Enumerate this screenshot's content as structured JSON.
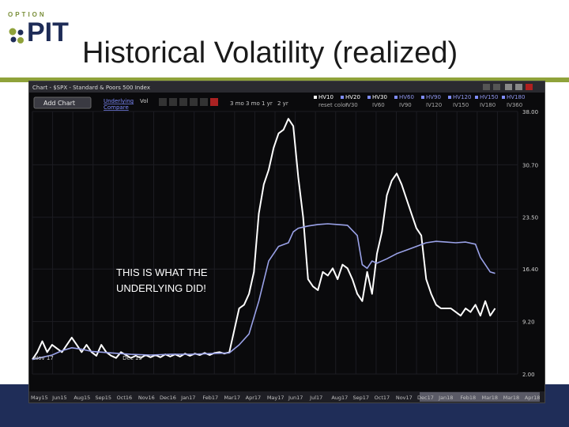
{
  "slide": {
    "title": "Historical Volatility (realized)",
    "logo_top": "OPTION",
    "logo_main": "PIT",
    "annotation_line1": "THIS IS WHAT THE",
    "annotation_line2": "UNDERLYING DID!"
  },
  "toolbar": {
    "window_title": "Chart - $SPX - Standard & Poors 500 Index",
    "add_chart_label": "Add Chart",
    "underlying_label": "Underlying",
    "vol_label": "Vol",
    "compare_label": "Compare",
    "periods": [
      "3 mo",
      "3 mo",
      "1 yr",
      "2 yr"
    ],
    "hv_options_row1": [
      "HV10",
      "HV20",
      "HV30",
      "HV60",
      "HV90",
      "HV120",
      "HV150",
      "HV180"
    ],
    "hv_options_row2": [
      "reset color",
      "IV30",
      "IV60",
      "IV90",
      "IV120",
      "IV150",
      "IV180",
      "IV360"
    ]
  },
  "colors": {
    "series_white": "#ffffff",
    "series_blue": "#9aa2e8",
    "axis_text": "#d0d0d0",
    "grid": "#1c1c22"
  },
  "chart_data": {
    "type": "line",
    "xlabel": "",
    "ylabel": "",
    "ylim": [
      2.0,
      38.0
    ],
    "y_ticks": [
      38.0,
      30.7,
      23.5,
      16.4,
      9.2,
      2.0
    ],
    "y_tick_labels": [
      "38.00",
      "30.70",
      "23.50",
      "16.40",
      "9.20",
      "2.00"
    ],
    "x_range": [
      0,
      96
    ],
    "upper_date_labels": [
      {
        "x": 0,
        "label": "Nov 17"
      },
      {
        "x": 18,
        "label": "Dec 15"
      }
    ],
    "lower_date_labels": [
      "May15",
      "Jun15",
      "Aug15",
      "Sep15",
      "Oct16",
      "Nov16",
      "Dec16",
      "Jan17",
      "Feb17",
      "Mar17",
      "Apr17",
      "May17",
      "Jun17",
      "Jul17",
      "Aug17",
      "Sep17",
      "Oct17",
      "Nov17",
      "Dec17",
      "Jan18",
      "Feb18",
      "Mar18",
      "Mar18",
      "Apr18"
    ],
    "series": [
      {
        "color": "#ffffff",
        "points": [
          [
            0,
            4.0
          ],
          [
            1,
            5.0
          ],
          [
            2,
            6.5
          ],
          [
            3,
            5.0
          ],
          [
            4,
            6.0
          ],
          [
            5,
            5.5
          ],
          [
            6,
            5.0
          ],
          [
            7,
            6.0
          ],
          [
            8,
            7.0
          ],
          [
            9,
            6.0
          ],
          [
            10,
            5.0
          ],
          [
            11,
            6.0
          ],
          [
            12,
            5.0
          ],
          [
            13,
            4.5
          ],
          [
            14,
            6.0
          ],
          [
            15,
            5.0
          ],
          [
            16,
            4.5
          ],
          [
            17,
            4.2
          ],
          [
            18,
            5.0
          ],
          [
            19,
            4.6
          ],
          [
            20,
            4.2
          ],
          [
            21,
            4.5
          ],
          [
            22,
            4.2
          ],
          [
            23,
            4.6
          ],
          [
            24,
            4.3
          ],
          [
            25,
            4.6
          ],
          [
            26,
            4.3
          ],
          [
            27,
            4.7
          ],
          [
            28,
            4.4
          ],
          [
            29,
            4.7
          ],
          [
            30,
            4.4
          ],
          [
            31,
            4.8
          ],
          [
            32,
            4.5
          ],
          [
            33,
            4.8
          ],
          [
            34,
            4.6
          ],
          [
            35,
            4.9
          ],
          [
            36,
            4.6
          ],
          [
            37,
            4.9
          ],
          [
            38,
            5.0
          ],
          [
            39,
            4.8
          ],
          [
            40,
            5.0
          ],
          [
            41,
            8.0
          ],
          [
            42,
            11.0
          ],
          [
            43,
            11.5
          ],
          [
            44,
            13.0
          ],
          [
            45,
            16.0
          ],
          [
            46,
            24.0
          ],
          [
            47,
            28.0
          ],
          [
            48,
            30.0
          ],
          [
            49,
            33.0
          ],
          [
            50,
            35.0
          ],
          [
            51,
            35.5
          ],
          [
            52,
            37.0
          ],
          [
            53,
            36.0
          ],
          [
            54,
            29.0
          ],
          [
            55,
            23.5
          ],
          [
            56,
            15.0
          ],
          [
            57,
            14.0
          ],
          [
            58,
            13.5
          ],
          [
            59,
            16.0
          ],
          [
            60,
            15.5
          ],
          [
            61,
            16.5
          ],
          [
            62,
            15.0
          ],
          [
            63,
            17.0
          ],
          [
            64,
            16.5
          ],
          [
            65,
            15.0
          ],
          [
            66,
            13.0
          ],
          [
            67,
            12.0
          ],
          [
            68,
            16.0
          ],
          [
            69,
            13.0
          ],
          [
            70,
            18.5
          ],
          [
            71,
            21.5
          ],
          [
            72,
            26.5
          ],
          [
            73,
            28.5
          ],
          [
            74,
            29.5
          ],
          [
            75,
            28.0
          ],
          [
            76,
            26.0
          ],
          [
            77,
            24.0
          ],
          [
            78,
            22.0
          ],
          [
            79,
            21.0
          ],
          [
            80,
            15.0
          ],
          [
            81,
            13.0
          ],
          [
            82,
            11.5
          ],
          [
            83,
            11.0
          ],
          [
            84,
            11.0
          ],
          [
            85,
            11.0
          ],
          [
            86,
            10.5
          ],
          [
            87,
            10.0
          ],
          [
            88,
            11.0
          ],
          [
            89,
            10.5
          ],
          [
            90,
            11.5
          ],
          [
            91,
            10.0
          ],
          [
            92,
            12.0
          ],
          [
            93,
            10.0
          ],
          [
            94,
            11.0
          ]
        ]
      },
      {
        "color": "#9aa2e8",
        "points": [
          [
            0,
            4.0
          ],
          [
            2,
            4.3
          ],
          [
            4,
            4.6
          ],
          [
            6,
            5.2
          ],
          [
            8,
            5.6
          ],
          [
            10,
            5.4
          ],
          [
            12,
            5.1
          ],
          [
            14,
            5.0
          ],
          [
            16,
            4.9
          ],
          [
            18,
            4.8
          ],
          [
            20,
            4.7
          ],
          [
            24,
            4.6
          ],
          [
            28,
            4.7
          ],
          [
            32,
            4.7
          ],
          [
            36,
            4.8
          ],
          [
            40,
            4.9
          ],
          [
            42,
            6.0
          ],
          [
            44,
            7.5
          ],
          [
            46,
            12.0
          ],
          [
            48,
            17.5
          ],
          [
            50,
            19.5
          ],
          [
            52,
            20.0
          ],
          [
            53,
            21.5
          ],
          [
            54,
            22.0
          ],
          [
            56,
            22.3
          ],
          [
            58,
            22.5
          ],
          [
            60,
            22.6
          ],
          [
            62,
            22.5
          ],
          [
            64,
            22.4
          ],
          [
            66,
            21.0
          ],
          [
            67,
            17.0
          ],
          [
            68,
            16.5
          ],
          [
            69,
            17.5
          ],
          [
            70,
            17.2
          ],
          [
            72,
            17.8
          ],
          [
            74,
            18.5
          ],
          [
            76,
            19.0
          ],
          [
            78,
            19.5
          ],
          [
            80,
            20.0
          ],
          [
            82,
            20.2
          ],
          [
            84,
            20.1
          ],
          [
            86,
            20.0
          ],
          [
            88,
            20.1
          ],
          [
            90,
            19.8
          ],
          [
            91,
            18.0
          ],
          [
            92,
            17.0
          ],
          [
            93,
            16.0
          ],
          [
            94,
            15.8
          ]
        ]
      }
    ]
  }
}
